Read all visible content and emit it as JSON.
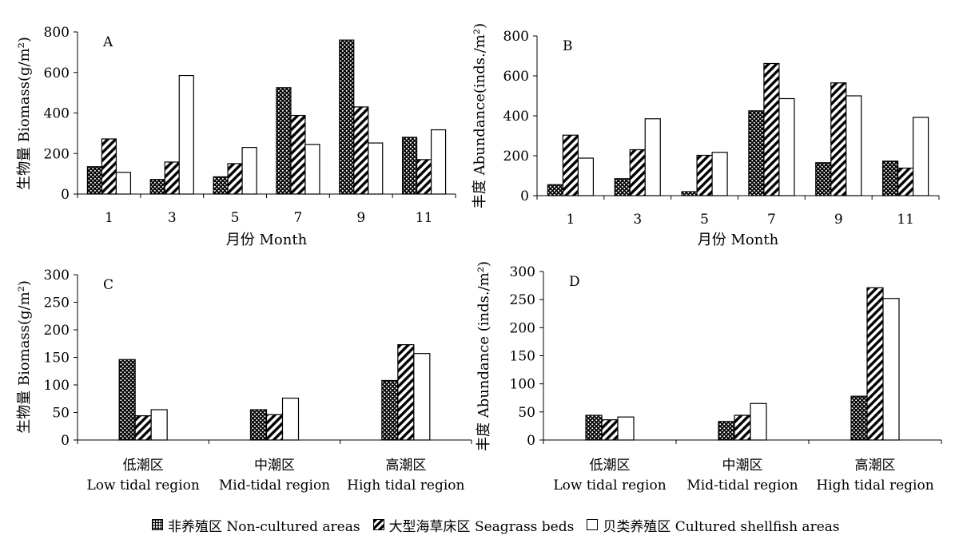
{
  "legend": {
    "series": [
      {
        "name": "非养殖区 Non-cultured areas",
        "pattern": "dots"
      },
      {
        "name": "大型海草床区 Seagrass beds",
        "pattern": "hatch"
      },
      {
        "name": "贝类养殖区 Cultured shellfish areas",
        "pattern": "white"
      }
    ]
  },
  "chart_data": [
    {
      "panel": "A",
      "type": "bar",
      "categories": [
        "1",
        "3",
        "5",
        "7",
        "9",
        "11"
      ],
      "xlabel": "月份 Month",
      "ylabel": "生物量 Biomass(g/m²)",
      "ylim": [
        0,
        800
      ],
      "yticks": [
        "0",
        "200",
        "400",
        "600",
        "800"
      ],
      "series": [
        {
          "name": "非养殖区 Non-cultured areas",
          "values": [
            135,
            72,
            85,
            525,
            760,
            280
          ]
        },
        {
          "name": "大型海草床区 Seagrass beds",
          "values": [
            272,
            158,
            150,
            388,
            430,
            170
          ]
        },
        {
          "name": "贝类养殖区 Cultured shellfish areas",
          "values": [
            107,
            585,
            230,
            245,
            252,
            317
          ]
        }
      ]
    },
    {
      "panel": "B",
      "type": "bar",
      "categories": [
        "1",
        "3",
        "5",
        "7",
        "9",
        "11"
      ],
      "xlabel": "月份 Month",
      "ylabel": "丰度 Abundance(inds./m²)",
      "ylim": [
        0,
        800
      ],
      "yticks": [
        "0",
        "200",
        "400",
        "600",
        "800"
      ],
      "series": [
        {
          "name": "非养殖区 Non-cultured areas",
          "values": [
            55,
            85,
            20,
            425,
            165,
            173
          ]
        },
        {
          "name": "大型海草床区 Seagrass beds",
          "values": [
            303,
            230,
            202,
            662,
            565,
            138
          ]
        },
        {
          "name": "贝类养殖区 Cultured shellfish areas",
          "values": [
            188,
            385,
            217,
            486,
            500,
            392
          ]
        }
      ]
    },
    {
      "panel": "C",
      "type": "bar",
      "categories": [
        "低潮区\nLow tidal region",
        "中潮区\nMid-tidal region",
        "高潮区\nHigh tidal region"
      ],
      "xlabel": "",
      "ylabel": "生物量 Biomass(g/m²)",
      "ylim": [
        0,
        300
      ],
      "yticks": [
        "0",
        "50",
        "100",
        "150",
        "200",
        "250",
        "300"
      ],
      "series": [
        {
          "name": "非养殖区 Non-cultured areas",
          "values": [
            146,
            55,
            108
          ]
        },
        {
          "name": "大型海草床区 Seagrass beds",
          "values": [
            44,
            46,
            173
          ]
        },
        {
          "name": "贝类养殖区 Cultured shellfish areas",
          "values": [
            55,
            76,
            157
          ]
        }
      ]
    },
    {
      "panel": "D",
      "type": "bar",
      "categories": [
        "低潮区\nLow tidal region",
        "中潮区\nMid-tidal region",
        "高潮区\nHigh tidal region"
      ],
      "xlabel": "",
      "ylabel": "丰度 Abundance (inds./m²)",
      "ylim": [
        0,
        300
      ],
      "yticks": [
        "0",
        "50",
        "100",
        "150",
        "200",
        "250",
        "300"
      ],
      "series": [
        {
          "name": "非养殖区 Non-cultured areas",
          "values": [
            44,
            33,
            78
          ]
        },
        {
          "name": "大型海草床区 Seagrass beds",
          "values": [
            36,
            44,
            271
          ]
        },
        {
          "name": "贝类养殖区 Cultured shellfish areas",
          "values": [
            41,
            65,
            252
          ]
        }
      ]
    }
  ]
}
